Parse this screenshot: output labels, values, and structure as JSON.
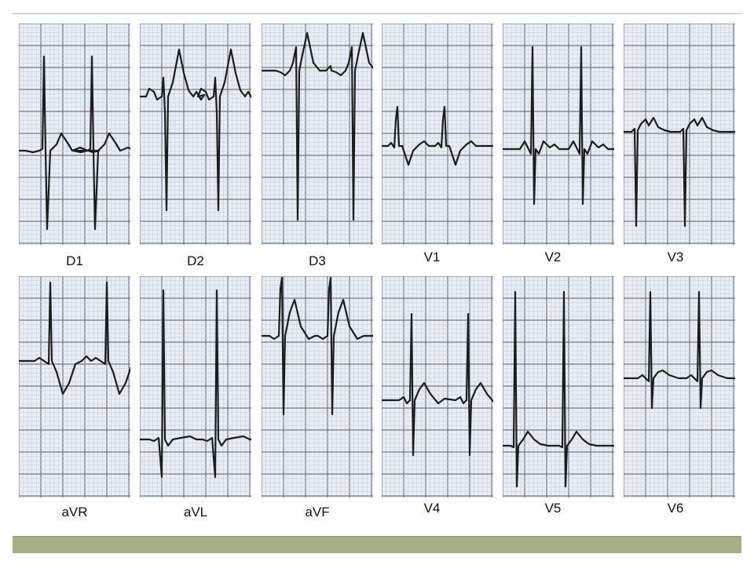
{
  "leads": [
    {
      "name": "D1",
      "type": "d1"
    },
    {
      "name": "D2",
      "type": "d2"
    },
    {
      "name": "D3",
      "type": "d3"
    },
    {
      "name": "V1",
      "type": "v1"
    },
    {
      "name": "V2",
      "type": "v2"
    },
    {
      "name": "V3",
      "type": "v3"
    },
    {
      "name": "aVR",
      "type": "avr"
    },
    {
      "name": "aVL",
      "type": "avl"
    },
    {
      "name": "aVF",
      "type": "avf"
    },
    {
      "name": "V4",
      "type": "v4"
    },
    {
      "name": "V5",
      "type": "v5"
    },
    {
      "name": "V6",
      "type": "v6"
    }
  ],
  "colors": {
    "paper": "#e9eef5",
    "grid_minor": "#c7cfdb",
    "grid_major": "#6f7885",
    "trace": "#1c1c1c",
    "footer_bar": "#a5b089"
  }
}
